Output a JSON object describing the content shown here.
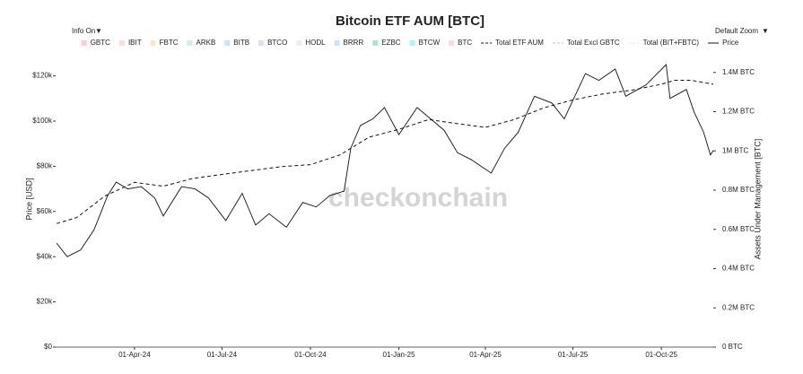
{
  "chart_data": {
    "type": "line",
    "title": "Bitcoin ETF AUM [BTC]",
    "buttons": [
      "Info On",
      "Default Zoom"
    ],
    "watermark": "checkonchain",
    "ylabel": "Price [USD]",
    "y2label": "Assets Under Management [BTC]",
    "xlim": [
      "2024-01-10",
      "2025-11-24"
    ],
    "xticks": [
      {
        "value": "2024-04-01",
        "label": "01-Apr-24"
      },
      {
        "value": "2024-07-01",
        "label": "01-Jul-24"
      },
      {
        "value": "2024-10-01",
        "label": "01-Oct-24"
      },
      {
        "value": "2025-01-01",
        "label": "01-Jan-25"
      },
      {
        "value": "2025-04-01",
        "label": "01-Apr-25"
      },
      {
        "value": "2025-07-01",
        "label": "01-Jul-25"
      },
      {
        "value": "2025-10-01",
        "label": "01-Oct-25"
      }
    ],
    "ylim": [
      0,
      125000
    ],
    "yticks": [
      {
        "value": 0,
        "label": "$0"
      },
      {
        "value": 20000,
        "label": "$20k"
      },
      {
        "value": 40000,
        "label": "$40k"
      },
      {
        "value": 60000,
        "label": "$60k"
      },
      {
        "value": 80000,
        "label": "$80k"
      },
      {
        "value": 100000,
        "label": "$100k"
      },
      {
        "value": 120000,
        "label": "$120k"
      }
    ],
    "y2lim": [
      0,
      1440000
    ],
    "y2ticks": [
      {
        "value": 0,
        "label": "0 BTC"
      },
      {
        "value": 200000,
        "label": "0.2M BTC"
      },
      {
        "value": 400000,
        "label": "0.4M BTC"
      },
      {
        "value": 600000,
        "label": "0.6M BTC"
      },
      {
        "value": 800000,
        "label": "0.8M BTC"
      },
      {
        "value": 1000000,
        "label": "1M BTC"
      },
      {
        "value": 1200000,
        "label": "1.2M BTC"
      },
      {
        "value": 1400000,
        "label": "1.4M BTC"
      }
    ],
    "series": [
      {
        "name": "GBTC",
        "color": "#f4a6b8",
        "visible": false
      },
      {
        "name": "IBIT",
        "color": "#f8c0c0",
        "visible": false
      },
      {
        "name": "FBTC",
        "color": "#fcd0a0",
        "visible": false
      },
      {
        "name": "ARKB",
        "color": "#a8e0c8",
        "visible": false
      },
      {
        "name": "BITB",
        "color": "#a8c8f0",
        "visible": false
      },
      {
        "name": "BTCO",
        "color": "#c8c0f0",
        "visible": false
      },
      {
        "name": "HODL",
        "color": "#e4dcd4",
        "visible": false
      },
      {
        "name": "BRRR",
        "color": "#a8c8f8",
        "visible": false
      },
      {
        "name": "EZBC",
        "color": "#6cc8a8",
        "visible": false
      },
      {
        "name": "BTCW",
        "color": "#6ee8f0",
        "visible": false
      },
      {
        "name": "BTC",
        "color": "#f4b8c8",
        "visible": false
      },
      {
        "name": "Total ETF AUM",
        "color": "#111111",
        "dash": true,
        "visible": true,
        "axis": "y2",
        "x": [
          "2024-01-11",
          "2024-02-01",
          "2024-03-01",
          "2024-04-01",
          "2024-05-01",
          "2024-06-01",
          "2024-07-01",
          "2024-08-01",
          "2024-09-01",
          "2024-10-01",
          "2024-11-01",
          "2024-12-01",
          "2025-01-01",
          "2025-02-01",
          "2025-03-01",
          "2025-04-01",
          "2025-05-01",
          "2025-06-01",
          "2025-07-01",
          "2025-08-01",
          "2025-09-01",
          "2025-10-01",
          "2025-10-15",
          "2025-11-01",
          "2025-11-24"
        ],
        "values": [
          630000,
          660000,
          770000,
          840000,
          820000,
          860000,
          880000,
          900000,
          920000,
          930000,
          980000,
          1070000,
          1110000,
          1160000,
          1140000,
          1120000,
          1160000,
          1220000,
          1260000,
          1290000,
          1310000,
          1340000,
          1360000,
          1360000,
          1340000
        ]
      },
      {
        "name": "Total Excl GBTC",
        "color": "#999999",
        "dash": true,
        "visible": false
      },
      {
        "name": "Total (BIT+FBTC)",
        "color": "#e8d49a",
        "dash": true,
        "visible": false
      },
      {
        "name": "Price",
        "color": "#111111",
        "dash": false,
        "visible": true,
        "axis": "y",
        "x": [
          "2024-01-11",
          "2024-01-22",
          "2024-02-05",
          "2024-02-19",
          "2024-03-04",
          "2024-03-13",
          "2024-03-25",
          "2024-04-08",
          "2024-04-22",
          "2024-05-01",
          "2024-05-20",
          "2024-06-03",
          "2024-06-17",
          "2024-07-05",
          "2024-07-22",
          "2024-08-05",
          "2024-08-19",
          "2024-09-06",
          "2024-09-23",
          "2024-10-07",
          "2024-10-21",
          "2024-11-05",
          "2024-11-12",
          "2024-11-22",
          "2024-12-05",
          "2024-12-17",
          "2025-01-01",
          "2025-01-20",
          "2025-02-03",
          "2025-02-17",
          "2025-03-03",
          "2025-03-17",
          "2025-04-07",
          "2025-04-21",
          "2025-05-05",
          "2025-05-22",
          "2025-06-09",
          "2025-06-22",
          "2025-07-14",
          "2025-07-28",
          "2025-08-14",
          "2025-08-25",
          "2025-09-15",
          "2025-10-06",
          "2025-10-10",
          "2025-10-27",
          "2025-11-04",
          "2025-11-14",
          "2025-11-21",
          "2025-11-24"
        ],
        "values": [
          46000,
          40000,
          43000,
          52000,
          67000,
          73000,
          70000,
          71000,
          66000,
          58000,
          71000,
          70000,
          66000,
          56000,
          68000,
          54000,
          59000,
          53000,
          64000,
          62000,
          67000,
          69000,
          88000,
          98000,
          101000,
          106000,
          94000,
          106000,
          101000,
          96000,
          86000,
          83000,
          77000,
          88000,
          95000,
          111000,
          108000,
          101000,
          121000,
          118000,
          123000,
          111000,
          116000,
          125000,
          110000,
          114000,
          104000,
          95000,
          85000,
          87000
        ]
      }
    ]
  }
}
